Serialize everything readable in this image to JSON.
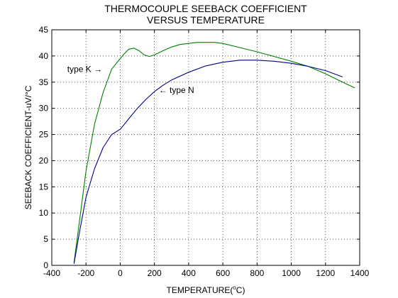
{
  "chart_data": {
    "type": "line",
    "title": [
      "THERMOCOUPLE SEEBACK COEFFICIENT",
      "VERSUS TEMPERATURE"
    ],
    "xlabel": {
      "prefix": "TEMPERATURE(",
      "sup": "o",
      "suffix": "C)"
    },
    "ylabel": "SEEBACK COEFFICIENT-uV/°C",
    "xlim": [
      -400,
      1400
    ],
    "ylim": [
      0,
      45
    ],
    "xticks": [
      -400,
      -200,
      0,
      200,
      400,
      600,
      800,
      1000,
      1200,
      1400
    ],
    "yticks": [
      0,
      5,
      10,
      15,
      20,
      25,
      30,
      35,
      40,
      45
    ],
    "grid": true,
    "series": [
      {
        "name": "type K",
        "color": "#008000",
        "x": [
          -270,
          -240,
          -200,
          -150,
          -100,
          -50,
          0,
          20,
          50,
          80,
          110,
          140,
          170,
          200,
          250,
          300,
          350,
          400,
          450,
          500,
          550,
          600,
          700,
          800,
          900,
          1000,
          1100,
          1200,
          1300,
          1372
        ],
        "y": [
          0.5,
          8,
          18,
          27,
          33,
          37.5,
          39.5,
          40.3,
          41.3,
          41.5,
          41.0,
          40.2,
          39.9,
          40.2,
          41.0,
          41.7,
          42.2,
          42.4,
          42.6,
          42.6,
          42.6,
          42.4,
          41.6,
          40.8,
          39.9,
          39.0,
          38.0,
          36.6,
          35.0,
          33.9
        ]
      },
      {
        "name": "type N",
        "color": "#00008b",
        "x": [
          -270,
          -240,
          -200,
          -150,
          -100,
          -50,
          0,
          20,
          50,
          100,
          150,
          200,
          250,
          300,
          400,
          500,
          600,
          700,
          800,
          900,
          1000,
          1100,
          1200,
          1300
        ],
        "y": [
          0.3,
          6,
          13,
          18.5,
          22.5,
          25,
          26,
          26.8,
          28,
          30,
          31.7,
          33.2,
          34.4,
          35.4,
          36.9,
          38.1,
          38.8,
          39.2,
          39.2,
          39.0,
          38.6,
          38.0,
          37.2,
          36.0
        ]
      }
    ],
    "annotations": [
      {
        "text": "type K",
        "arrow": "→",
        "arrow_side": "after",
        "x": -105,
        "y": 37.5
      },
      {
        "text": "type N",
        "arrow": "←",
        "arrow_side": "before",
        "x": 225,
        "y": 33.5
      }
    ]
  }
}
